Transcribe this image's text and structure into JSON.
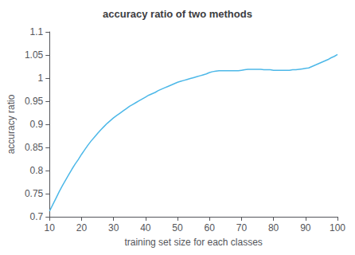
{
  "chart_data": {
    "type": "line",
    "title": "accuracy ratio of two methods",
    "xlabel": "training set size for each classes",
    "ylabel": "accuracy ratio",
    "color": "#4db8e8",
    "xlim": [
      10,
      100
    ],
    "ylim": [
      0.7,
      1.1
    ],
    "xticks": [
      10,
      20,
      30,
      40,
      50,
      60,
      70,
      80,
      90,
      100
    ],
    "yticks": [
      0.7,
      0.75,
      0.8,
      0.85,
      0.9,
      0.95,
      1,
      1.05,
      1.1
    ],
    "grid": false,
    "x": [
      10,
      11,
      12,
      13,
      14,
      15,
      16,
      17,
      18,
      19,
      20,
      21,
      22,
      23,
      24,
      25,
      26,
      27,
      28,
      29,
      30,
      31,
      32,
      33,
      34,
      35,
      36,
      37,
      38,
      39,
      40,
      41,
      42,
      43,
      44,
      45,
      46,
      47,
      48,
      49,
      50,
      51,
      52,
      53,
      54,
      55,
      56,
      57,
      58,
      59,
      60,
      61,
      62,
      63,
      64,
      65,
      66,
      67,
      68,
      69,
      70,
      71,
      72,
      73,
      74,
      75,
      76,
      77,
      78,
      79,
      80,
      81,
      82,
      83,
      84,
      85,
      86,
      87,
      88,
      89,
      90,
      91,
      92,
      93,
      94,
      95,
      96,
      97,
      98,
      99,
      100
    ],
    "values": [
      0.712,
      0.726,
      0.74,
      0.754,
      0.767,
      0.779,
      0.791,
      0.803,
      0.814,
      0.824,
      0.835,
      0.845,
      0.855,
      0.864,
      0.872,
      0.88,
      0.888,
      0.895,
      0.902,
      0.908,
      0.914,
      0.919,
      0.924,
      0.929,
      0.934,
      0.939,
      0.943,
      0.947,
      0.951,
      0.955,
      0.959,
      0.963,
      0.966,
      0.969,
      0.973,
      0.976,
      0.979,
      0.982,
      0.985,
      0.988,
      0.991,
      0.993,
      0.995,
      0.997,
      0.999,
      1.001,
      1.003,
      1.005,
      1.007,
      1.009,
      1.012,
      1.014,
      1.015,
      1.016,
      1.016,
      1.016,
      1.016,
      1.016,
      1.016,
      1.016,
      1.017,
      1.018,
      1.019,
      1.019,
      1.019,
      1.019,
      1.019,
      1.018,
      1.018,
      1.018,
      1.017,
      1.017,
      1.017,
      1.017,
      1.017,
      1.017,
      1.018,
      1.018,
      1.019,
      1.02,
      1.021,
      1.022,
      1.025,
      1.028,
      1.031,
      1.034,
      1.037,
      1.04,
      1.044,
      1.047,
      1.051
    ]
  }
}
